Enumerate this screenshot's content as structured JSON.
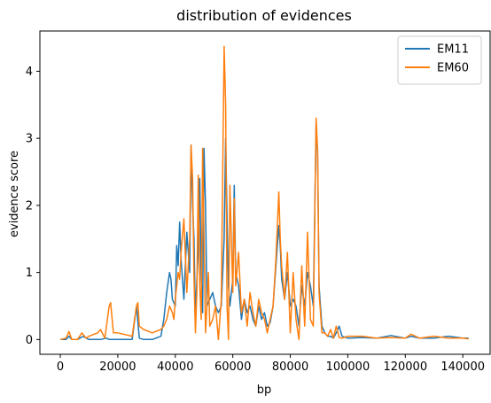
{
  "chart_data": {
    "type": "line",
    "title": "distribution of evidences",
    "xlabel": "bp",
    "ylabel": "evidence score",
    "xlim": [
      -7100,
      149500
    ],
    "ylim": [
      -0.22,
      4.6
    ],
    "xticks": [
      0,
      20000,
      40000,
      60000,
      80000,
      100000,
      120000,
      140000
    ],
    "yticks": [
      0,
      1,
      2,
      3,
      4
    ],
    "legend_position": "top-right",
    "series": [
      {
        "name": "EM11",
        "color": "#1f77b4",
        "x": [
          0,
          2000,
          3000,
          4000,
          6000,
          8000,
          9000,
          10000,
          14000,
          16000,
          17000,
          18000,
          20000,
          25000,
          26500,
          27500,
          29000,
          32000,
          35000,
          36000,
          37000,
          38000,
          38500,
          39000,
          40000,
          40500,
          41000,
          41500,
          42000,
          43000,
          44000,
          45000,
          45500,
          46000,
          46500,
          47000,
          47500,
          48000,
          48500,
          49000,
          49500,
          50000,
          50500,
          51000,
          52000,
          53000,
          54000,
          55000,
          56000,
          57000,
          57500,
          58000,
          58500,
          59000,
          60000,
          60500,
          61000,
          62000,
          63000,
          64000,
          65000,
          66000,
          67000,
          68000,
          69000,
          70000,
          71000,
          72000,
          73000,
          74000,
          75000,
          76000,
          76500,
          77000,
          78000,
          79000,
          80000,
          81000,
          82000,
          83000,
          84000,
          85000,
          86000,
          87000,
          88000,
          89000,
          89500,
          90000,
          91000,
          92000,
          93000,
          94000,
          95000,
          96000,
          97000,
          98000,
          100000,
          105000,
          110000,
          115000,
          120000,
          122000,
          125000,
          130000,
          135000,
          140000,
          142000
        ],
        "y": [
          0.0,
          0.0,
          0.05,
          0.0,
          0.0,
          0.05,
          0.02,
          0.0,
          0.0,
          0.02,
          0.0,
          0.0,
          0.0,
          0.0,
          0.5,
          0.02,
          0.0,
          0.0,
          0.05,
          0.3,
          0.7,
          1.0,
          0.9,
          0.6,
          0.5,
          1.4,
          1.1,
          1.75,
          1.2,
          0.6,
          1.6,
          1.0,
          2.9,
          2.0,
          1.5,
          0.3,
          0.9,
          1.3,
          2.4,
          0.9,
          0.4,
          2.85,
          2.0,
          0.5,
          0.6,
          0.7,
          0.5,
          0.4,
          0.5,
          1.5,
          3.0,
          1.8,
          0.8,
          0.5,
          0.9,
          2.3,
          1.0,
          0.8,
          0.3,
          0.6,
          0.4,
          0.5,
          0.3,
          0.2,
          0.5,
          0.3,
          0.4,
          0.2,
          0.25,
          0.5,
          1.1,
          1.7,
          1.4,
          0.9,
          0.6,
          1.0,
          0.5,
          0.6,
          0.5,
          0.2,
          0.8,
          0.5,
          1.0,
          0.8,
          0.5,
          3.25,
          2.7,
          0.8,
          0.2,
          0.1,
          0.05,
          0.05,
          0.02,
          0.1,
          0.2,
          0.05,
          0.02,
          0.03,
          0.02,
          0.06,
          0.02,
          0.05,
          0.02,
          0.02,
          0.05,
          0.02,
          0.02
        ]
      },
      {
        "name": "EM60",
        "color": "#ff7f0e",
        "x": [
          0,
          2000,
          3000,
          4000,
          6000,
          7500,
          9000,
          10000,
          13000,
          14000,
          15500,
          17000,
          17500,
          18500,
          20000,
          25000,
          26500,
          27000,
          27500,
          29000,
          32000,
          35000,
          36000,
          37000,
          38000,
          39000,
          39500,
          40000,
          41000,
          41500,
          42000,
          43000,
          44000,
          45000,
          45500,
          46000,
          46500,
          47000,
          47500,
          48000,
          48500,
          49000,
          49500,
          50000,
          50500,
          51000,
          51500,
          52000,
          53000,
          54000,
          55000,
          56000,
          56500,
          57000,
          57500,
          58000,
          58500,
          59000,
          60000,
          60500,
          61000,
          62000,
          63000,
          64000,
          65000,
          66000,
          67000,
          68000,
          69000,
          70000,
          71000,
          72000,
          73000,
          74000,
          75000,
          76000,
          76500,
          77000,
          78000,
          79000,
          80000,
          81000,
          82000,
          83000,
          84000,
          85000,
          86000,
          87000,
          88000,
          89000,
          89500,
          90000,
          91000,
          92000,
          93000,
          94000,
          95000,
          96000,
          97000,
          98000,
          100000,
          105000,
          110000,
          115000,
          120000,
          122000,
          125000,
          130000,
          135000,
          140000,
          142000
        ],
        "y": [
          0.0,
          0.02,
          0.12,
          0.0,
          0.0,
          0.1,
          0.02,
          0.05,
          0.1,
          0.15,
          0.02,
          0.5,
          0.55,
          0.1,
          0.1,
          0.05,
          0.5,
          0.55,
          0.2,
          0.15,
          0.1,
          0.15,
          0.2,
          0.3,
          0.5,
          0.4,
          0.3,
          0.6,
          1.0,
          0.9,
          1.3,
          1.8,
          0.7,
          1.5,
          2.9,
          2.4,
          0.9,
          0.1,
          0.7,
          2.45,
          0.8,
          0.3,
          2.85,
          1.5,
          0.1,
          0.5,
          1.0,
          0.2,
          0.3,
          0.5,
          0.0,
          0.6,
          2.5,
          4.37,
          3.5,
          0.5,
          0.0,
          2.3,
          0.7,
          2.1,
          0.8,
          1.3,
          0.4,
          0.6,
          0.2,
          0.7,
          0.4,
          0.2,
          0.6,
          0.4,
          0.3,
          0.1,
          0.3,
          0.5,
          1.2,
          2.2,
          1.5,
          1.1,
          0.6,
          1.3,
          0.1,
          1.0,
          0.3,
          0.0,
          1.1,
          0.2,
          1.6,
          0.3,
          0.2,
          3.3,
          2.8,
          0.7,
          0.1,
          0.1,
          0.05,
          0.15,
          0.02,
          0.2,
          0.03,
          0.02,
          0.05,
          0.05,
          0.02,
          0.03,
          0.02,
          0.08,
          0.02,
          0.05,
          0.02,
          0.02,
          0.01
        ]
      }
    ]
  }
}
